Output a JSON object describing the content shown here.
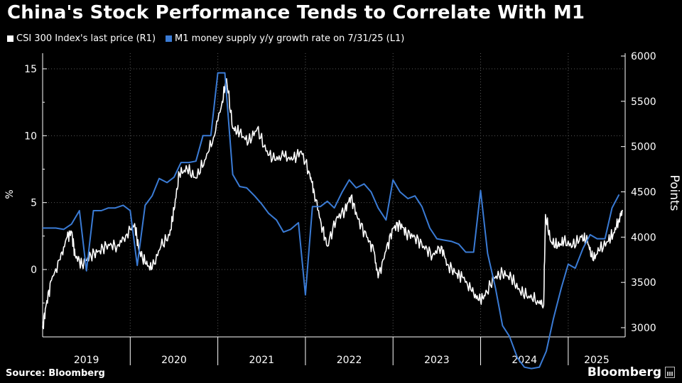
{
  "title": "China's Stock Performance Tends to Correlate With M1",
  "legend": [
    {
      "label": "CSI 300 Index's last price (R1)",
      "color": "#ffffff"
    },
    {
      "label": "M1 money supply y/y growth rate on 7/31/25 (L1)",
      "color": "#3a7bd5"
    }
  ],
  "source": "Source: Bloomberg",
  "brand": "Bloomberg",
  "chart_data": {
    "type": "line",
    "left_axis": {
      "label": "%",
      "ticks": [
        "15",
        "10",
        "5",
        "0"
      ],
      "range": [
        -5,
        16
      ]
    },
    "right_axis": {
      "label": "Points",
      "ticks": [
        "6000",
        "5500",
        "5000",
        "4500",
        "4000",
        "3500",
        "3000"
      ],
      "range": [
        2950,
        6050
      ]
    },
    "x_axis": {
      "years": [
        "2019",
        "2020",
        "2021",
        "2022",
        "2023",
        "2024",
        "2025"
      ],
      "range": [
        2019.0,
        2025.65
      ]
    },
    "series": [
      {
        "name": "CSI 300 Index's last price (R1)",
        "axis": "right",
        "color": "#ffffff",
        "points": [
          [
            2019.0,
            3000
          ],
          [
            2019.04,
            3250
          ],
          [
            2019.1,
            3520
          ],
          [
            2019.2,
            3750
          ],
          [
            2019.28,
            4000
          ],
          [
            2019.33,
            4060
          ],
          [
            2019.37,
            3800
          ],
          [
            2019.45,
            3700
          ],
          [
            2019.55,
            3800
          ],
          [
            2019.65,
            3850
          ],
          [
            2019.75,
            3920
          ],
          [
            2019.85,
            3900
          ],
          [
            2019.95,
            4020
          ],
          [
            2020.05,
            4150
          ],
          [
            2020.1,
            3850
          ],
          [
            2020.18,
            3700
          ],
          [
            2020.25,
            3650
          ],
          [
            2020.35,
            3900
          ],
          [
            2020.45,
            4020
          ],
          [
            2020.5,
            4300
          ],
          [
            2020.56,
            4700
          ],
          [
            2020.65,
            4750
          ],
          [
            2020.75,
            4650
          ],
          [
            2020.85,
            4850
          ],
          [
            2020.95,
            5100
          ],
          [
            2021.05,
            5500
          ],
          [
            2021.1,
            5750
          ],
          [
            2021.17,
            5200
          ],
          [
            2021.25,
            5150
          ],
          [
            2021.35,
            5050
          ],
          [
            2021.45,
            5200
          ],
          [
            2021.55,
            4950
          ],
          [
            2021.65,
            4850
          ],
          [
            2021.75,
            4900
          ],
          [
            2021.85,
            4850
          ],
          [
            2021.95,
            4950
          ],
          [
            2022.05,
            4700
          ],
          [
            2022.1,
            4500
          ],
          [
            2022.18,
            4150
          ],
          [
            2022.25,
            3900
          ],
          [
            2022.35,
            4200
          ],
          [
            2022.45,
            4300
          ],
          [
            2022.52,
            4450
          ],
          [
            2022.6,
            4200
          ],
          [
            2022.7,
            4000
          ],
          [
            2022.78,
            3850
          ],
          [
            2022.83,
            3550
          ],
          [
            2022.92,
            3850
          ],
          [
            2023.0,
            4100
          ],
          [
            2023.08,
            4150
          ],
          [
            2023.15,
            4050
          ],
          [
            2023.25,
            4000
          ],
          [
            2023.35,
            3900
          ],
          [
            2023.45,
            3800
          ],
          [
            2023.55,
            3900
          ],
          [
            2023.62,
            3700
          ],
          [
            2023.72,
            3600
          ],
          [
            2023.8,
            3550
          ],
          [
            2023.9,
            3400
          ],
          [
            2023.98,
            3300
          ],
          [
            2024.05,
            3350
          ],
          [
            2024.15,
            3550
          ],
          [
            2024.25,
            3600
          ],
          [
            2024.35,
            3550
          ],
          [
            2024.45,
            3400
          ],
          [
            2024.55,
            3350
          ],
          [
            2024.65,
            3300
          ],
          [
            2024.72,
            3250
          ],
          [
            2024.74,
            4250
          ],
          [
            2024.8,
            3950
          ],
          [
            2024.88,
            3900
          ],
          [
            2024.95,
            3950
          ],
          [
            2025.05,
            3900
          ],
          [
            2025.15,
            4000
          ],
          [
            2025.22,
            3950
          ],
          [
            2025.28,
            3750
          ],
          [
            2025.35,
            3850
          ],
          [
            2025.45,
            3950
          ],
          [
            2025.52,
            4050
          ],
          [
            2025.58,
            4200
          ],
          [
            2025.62,
            4300
          ]
        ]
      },
      {
        "name": "M1 money supply y/y growth rate on 7/31/25 (L1)",
        "axis": "left",
        "color": "#3a7bd5",
        "points": [
          [
            2019.0,
            3.1
          ],
          [
            2019.08,
            3.1
          ],
          [
            2019.15,
            3.1
          ],
          [
            2019.24,
            3.0
          ],
          [
            2019.33,
            3.4
          ],
          [
            2019.42,
            4.4
          ],
          [
            2019.5,
            -0.1
          ],
          [
            2019.58,
            4.4
          ],
          [
            2019.67,
            4.4
          ],
          [
            2019.75,
            4.6
          ],
          [
            2019.83,
            4.6
          ],
          [
            2019.92,
            4.8
          ],
          [
            2020.0,
            4.4
          ],
          [
            2020.08,
            0.3
          ],
          [
            2020.17,
            4.8
          ],
          [
            2020.25,
            5.5
          ],
          [
            2020.33,
            6.8
          ],
          [
            2020.42,
            6.5
          ],
          [
            2020.5,
            6.9
          ],
          [
            2020.58,
            8.0
          ],
          [
            2020.67,
            8.0
          ],
          [
            2020.75,
            8.1
          ],
          [
            2020.83,
            10.0
          ],
          [
            2020.92,
            10.0
          ],
          [
            2021.0,
            14.7
          ],
          [
            2021.08,
            14.7
          ],
          [
            2021.17,
            7.1
          ],
          [
            2021.25,
            6.2
          ],
          [
            2021.33,
            6.1
          ],
          [
            2021.42,
            5.5
          ],
          [
            2021.5,
            4.9
          ],
          [
            2021.58,
            4.2
          ],
          [
            2021.67,
            3.7
          ],
          [
            2021.75,
            2.8
          ],
          [
            2021.83,
            3.0
          ],
          [
            2021.92,
            3.5
          ],
          [
            2022.0,
            -1.9
          ],
          [
            2022.08,
            4.7
          ],
          [
            2022.17,
            4.7
          ],
          [
            2022.25,
            5.1
          ],
          [
            2022.33,
            4.6
          ],
          [
            2022.42,
            5.8
          ],
          [
            2022.5,
            6.7
          ],
          [
            2022.58,
            6.1
          ],
          [
            2022.67,
            6.4
          ],
          [
            2022.75,
            5.8
          ],
          [
            2022.83,
            4.6
          ],
          [
            2022.92,
            3.7
          ],
          [
            2023.0,
            6.7
          ],
          [
            2023.08,
            5.8
          ],
          [
            2023.17,
            5.3
          ],
          [
            2023.25,
            5.5
          ],
          [
            2023.33,
            4.7
          ],
          [
            2023.42,
            3.1
          ],
          [
            2023.5,
            2.3
          ],
          [
            2023.58,
            2.2
          ],
          [
            2023.67,
            2.1
          ],
          [
            2023.75,
            1.9
          ],
          [
            2023.83,
            1.3
          ],
          [
            2023.92,
            1.3
          ],
          [
            2024.0,
            5.9
          ],
          [
            2024.08,
            1.2
          ],
          [
            2024.17,
            -1.4
          ],
          [
            2024.25,
            -4.2
          ],
          [
            2024.33,
            -5.0
          ],
          [
            2024.42,
            -6.6
          ],
          [
            2024.5,
            -7.3
          ],
          [
            2024.58,
            -7.4
          ],
          [
            2024.67,
            -7.3
          ],
          [
            2024.75,
            -6.1
          ],
          [
            2024.83,
            -3.7
          ],
          [
            2024.92,
            -1.4
          ],
          [
            2025.0,
            0.4
          ],
          [
            2025.08,
            0.1
          ],
          [
            2025.17,
            1.6
          ],
          [
            2025.25,
            2.6
          ],
          [
            2025.33,
            2.3
          ],
          [
            2025.42,
            2.3
          ],
          [
            2025.5,
            4.6
          ],
          [
            2025.58,
            5.6
          ]
        ]
      }
    ],
    "grid": "vertical dotted at year boundaries and horizontal dotted at tick levels"
  }
}
